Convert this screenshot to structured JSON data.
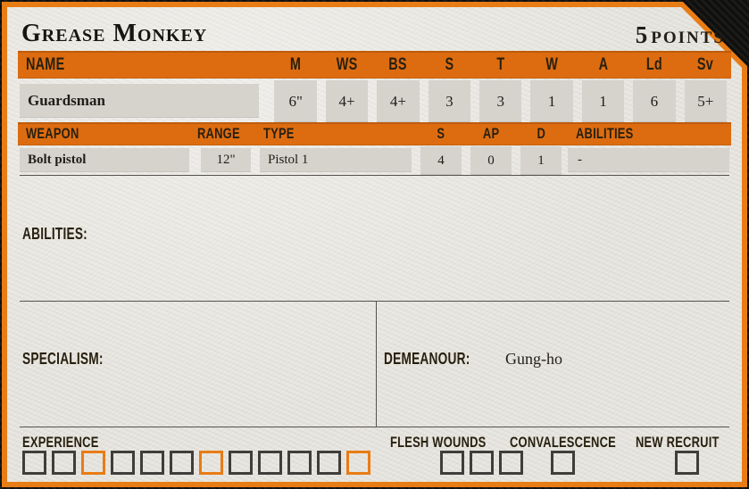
{
  "colors": {
    "accent_orange": "#dd6c10",
    "border_orange": "#e87c15",
    "paper": "#e9e7e1",
    "cell_gray": "#d6d3cd",
    "ink": "#201d18",
    "checkbox_dark": "#3f3e3b"
  },
  "card": {
    "title": "Grease Monkey",
    "points_value": "5",
    "points_label": "POINTS"
  },
  "stats_table": {
    "headers": [
      "NAME",
      "M",
      "WS",
      "BS",
      "S",
      "T",
      "W",
      "A",
      "Ld",
      "Sv"
    ],
    "row": {
      "name": "Guardsman",
      "values": [
        "6\"",
        "4+",
        "4+",
        "3",
        "3",
        "1",
        "1",
        "6",
        "5+"
      ]
    }
  },
  "weapons_table": {
    "headers": [
      "WEAPON",
      "RANGE",
      "TYPE",
      "S",
      "AP",
      "D",
      "ABILITIES"
    ],
    "rows": [
      {
        "name": "Bolt pistol",
        "range": "12\"",
        "type": "Pistol 1",
        "s": "4",
        "ap": "0",
        "d": "1",
        "abilities": "-"
      }
    ]
  },
  "sections": {
    "abilities_label": "ABILITIES:",
    "specialism_label": "SPECIALISM:",
    "demeanour_label": "DEMEANOUR:",
    "demeanour_value": "Gung-ho"
  },
  "tracker": {
    "experience": {
      "label": "EXPERIENCE",
      "count": 12,
      "highlighted": [
        3,
        7,
        12
      ]
    },
    "flesh_wounds": {
      "label": "FLESH WOUNDS",
      "count": 3,
      "highlighted": []
    },
    "convalescence": {
      "label": "CONVALESCENCE",
      "count": 1,
      "highlighted": []
    },
    "new_recruit": {
      "label": "NEW RECRUIT",
      "count": 1,
      "highlighted": []
    }
  }
}
